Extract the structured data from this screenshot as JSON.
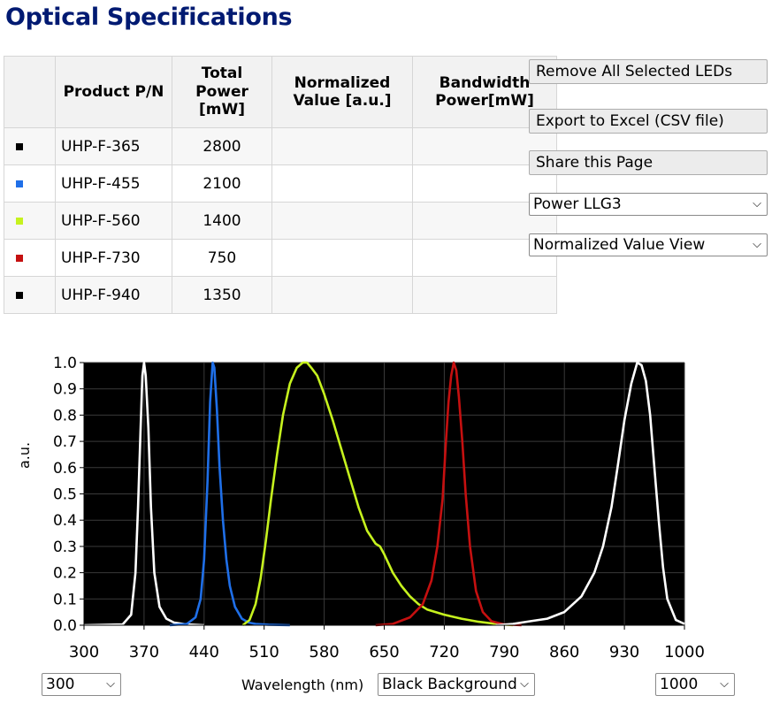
{
  "page": {
    "title": "Optical Specifications"
  },
  "table": {
    "headers": [
      "",
      "Product P/N",
      "Total Power [mW]",
      "Normalized Value [a.u.]",
      "Bandwidth Power[mW]"
    ],
    "rows": [
      {
        "color": "#000000",
        "pn": "UHP-F-365",
        "power": "2800",
        "normalized": "",
        "bandwidth": ""
      },
      {
        "color": "#1f6fe8",
        "pn": "UHP-F-455",
        "power": "2100",
        "normalized": "",
        "bandwidth": ""
      },
      {
        "color": "#c6f21e",
        "pn": "UHP-F-560",
        "power": "1400",
        "normalized": "",
        "bandwidth": ""
      },
      {
        "color": "#c51010",
        "pn": "UHP-F-730",
        "power": "750",
        "normalized": "",
        "bandwidth": ""
      },
      {
        "color": "#000000",
        "pn": "UHP-F-940",
        "power": "1350",
        "normalized": "",
        "bandwidth": ""
      }
    ]
  },
  "actions": {
    "remove_all": "Remove All Selected LEDs",
    "export": "Export to Excel (CSV file)",
    "share": "Share this Page",
    "power_select": "Power LLG3",
    "view_select": "Normalized Value View"
  },
  "chart_controls": {
    "min_select": "300",
    "background_select": "Black Background",
    "max_select": "1000"
  },
  "chart_data": {
    "type": "line",
    "xlabel": "Wavelength (nm)",
    "ylabel": "a.u.",
    "xlim": [
      300,
      1000
    ],
    "ylim": [
      0,
      1
    ],
    "x_ticks": [
      300,
      370,
      440,
      510,
      580,
      650,
      720,
      790,
      860,
      930,
      1000
    ],
    "y_ticks": [
      "0.0",
      "0.1",
      "0.2",
      "0.3",
      "0.4",
      "0.5",
      "0.6",
      "0.7",
      "0.8",
      "0.9",
      "1.0"
    ],
    "background": "#000000",
    "series": [
      {
        "name": "UHP-F-365",
        "color": "#ffffff",
        "x": [
          300,
          345,
          355,
          360,
          363,
          366,
          368,
          370,
          372,
          375,
          378,
          382,
          388,
          396,
          405,
          420,
          440
        ],
        "y": [
          0,
          0.003,
          0.04,
          0.2,
          0.45,
          0.75,
          0.95,
          1.0,
          0.95,
          0.75,
          0.45,
          0.2,
          0.07,
          0.025,
          0.01,
          0.003,
          0
        ]
      },
      {
        "name": "UHP-F-455",
        "color": "#1f6fe8",
        "x": [
          400,
          420,
          430,
          436,
          440,
          444,
          447,
          450,
          452,
          455,
          458,
          462,
          466,
          470,
          476,
          484,
          492,
          500,
          515,
          540
        ],
        "y": [
          0,
          0.005,
          0.03,
          0.1,
          0.25,
          0.55,
          0.85,
          1.0,
          0.98,
          0.82,
          0.6,
          0.4,
          0.25,
          0.15,
          0.07,
          0.025,
          0.01,
          0.005,
          0.002,
          0
        ]
      },
      {
        "name": "UHP-F-560",
        "color": "#c6f21e",
        "x": [
          485,
          493,
          500,
          506,
          512,
          518,
          525,
          532,
          540,
          548,
          555,
          560,
          565,
          572,
          580,
          590,
          600,
          610,
          620,
          630,
          640,
          645,
          650,
          660,
          670,
          680,
          690,
          700,
          720,
          740,
          760,
          780,
          800
        ],
        "y": [
          0,
          0.02,
          0.08,
          0.18,
          0.32,
          0.48,
          0.65,
          0.8,
          0.92,
          0.98,
          1.0,
          1.0,
          0.98,
          0.95,
          0.88,
          0.78,
          0.67,
          0.56,
          0.45,
          0.36,
          0.31,
          0.3,
          0.27,
          0.2,
          0.15,
          0.11,
          0.08,
          0.06,
          0.04,
          0.025,
          0.013,
          0.005,
          0
        ]
      },
      {
        "name": "UHP-F-730",
        "color": "#c51010",
        "x": [
          640,
          660,
          680,
          695,
          705,
          712,
          718,
          722,
          725,
          728,
          731,
          734,
          737,
          741,
          745,
          750,
          757,
          765,
          775,
          790,
          810
        ],
        "y": [
          0,
          0.005,
          0.03,
          0.08,
          0.17,
          0.3,
          0.48,
          0.7,
          0.85,
          0.95,
          1.0,
          0.97,
          0.87,
          0.7,
          0.5,
          0.3,
          0.13,
          0.05,
          0.015,
          0.003,
          0
        ]
      },
      {
        "name": "UHP-F-940",
        "color": "#ffffff",
        "x": [
          780,
          800,
          820,
          840,
          860,
          880,
          895,
          905,
          915,
          922,
          930,
          938,
          945,
          950,
          955,
          960,
          965,
          970,
          975,
          980,
          990,
          1000
        ],
        "y": [
          0,
          0.005,
          0.015,
          0.025,
          0.05,
          0.11,
          0.2,
          0.3,
          0.45,
          0.6,
          0.78,
          0.92,
          1.0,
          0.99,
          0.93,
          0.8,
          0.6,
          0.4,
          0.22,
          0.1,
          0.02,
          0.005
        ]
      }
    ]
  }
}
